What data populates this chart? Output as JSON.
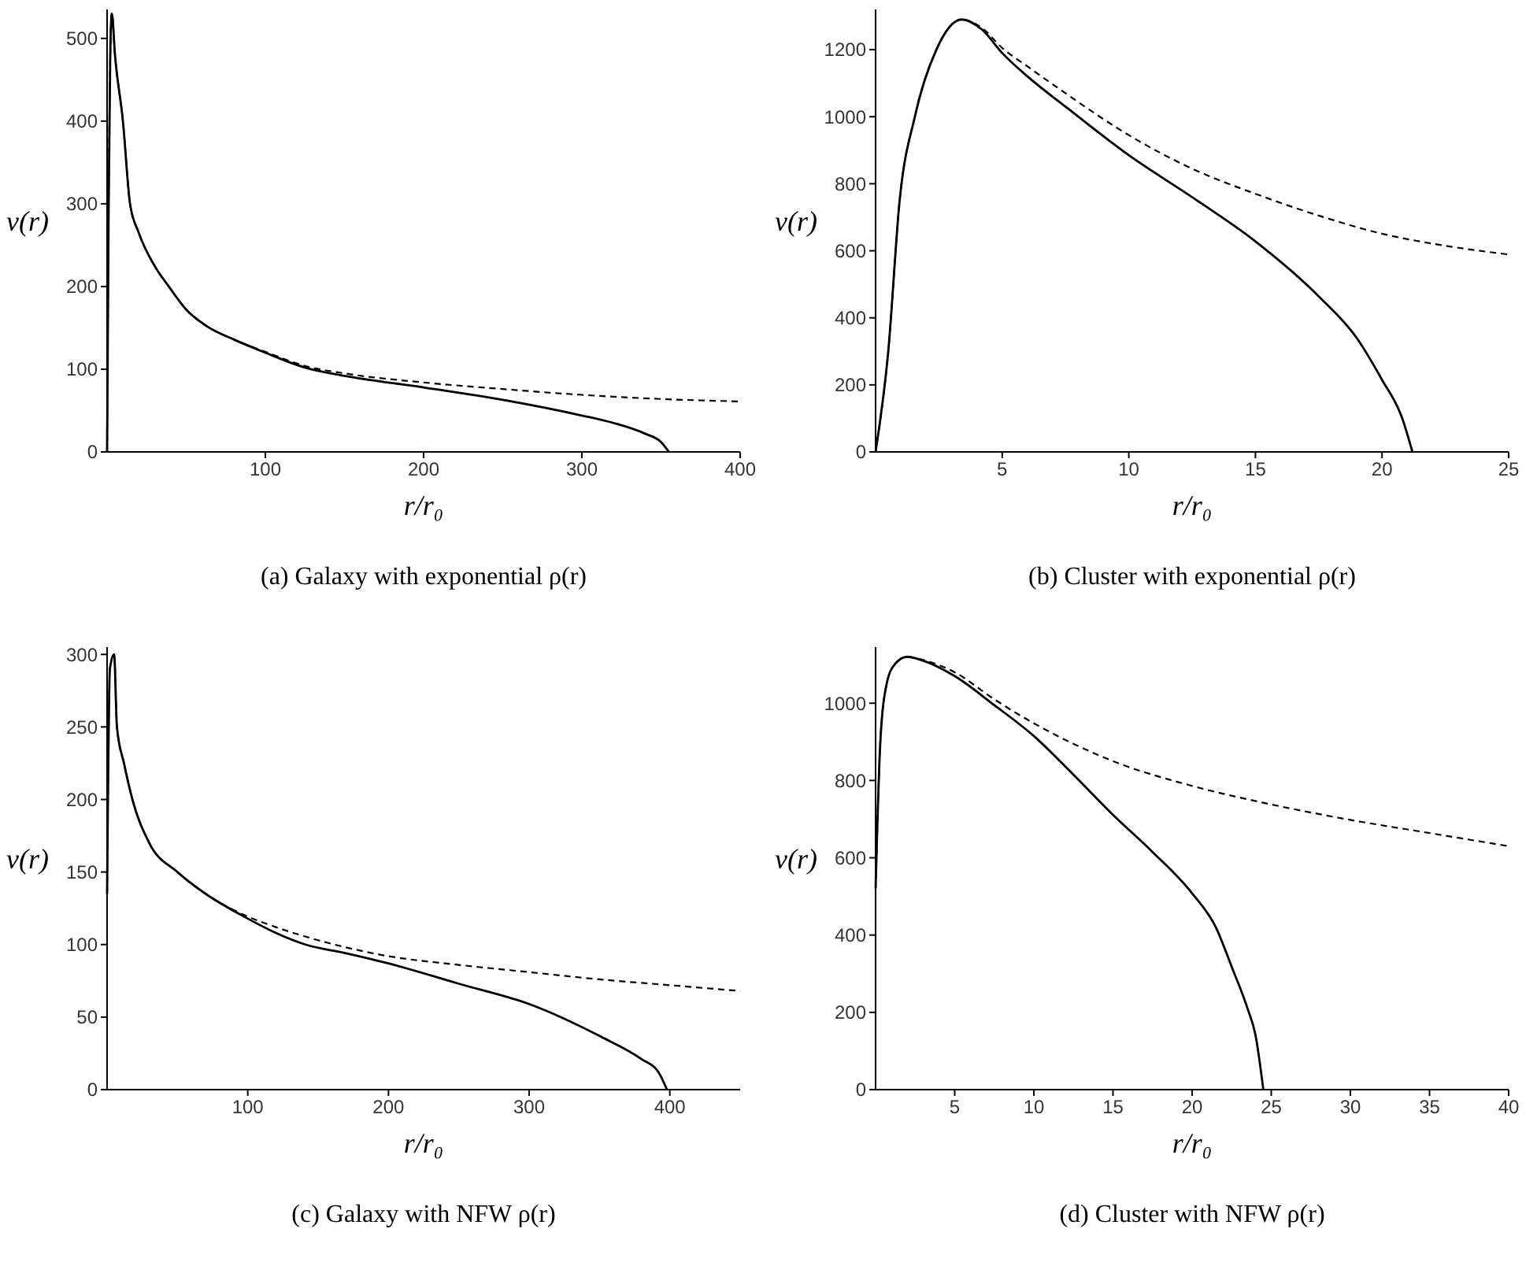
{
  "chart_data": [
    {
      "type": "line",
      "title": "(a) Galaxy with exponential ρ(r)",
      "xlabel": "r/r₀",
      "ylabel": "v(r)",
      "xlim": [
        0,
        400
      ],
      "ylim": [
        0,
        535
      ],
      "xticks": [
        100,
        200,
        300,
        400
      ],
      "yticks": [
        0,
        100,
        200,
        300,
        400,
        500
      ],
      "series": [
        {
          "color": "#000000",
          "line_style": "solid",
          "x": [
            0,
            1,
            2,
            3,
            5,
            10,
            14.5,
            20,
            30,
            39,
            50,
            63,
            80,
            100,
            125,
            150,
            200,
            250,
            300,
            320,
            340,
            350,
            355
          ],
          "values": [
            0,
            300,
            480,
            530,
            480,
            400,
            300,
            265,
            225,
            200,
            172,
            152,
            136,
            120,
            102,
            92,
            78,
            63,
            44,
            35,
            22,
            12,
            0
          ]
        },
        {
          "color": "#000000",
          "line_style": "dashed",
          "x": [
            0,
            1,
            2,
            3,
            5,
            10,
            14.5,
            20,
            30,
            39,
            50,
            63,
            80,
            100,
            125,
            150,
            200,
            250,
            300,
            350,
            400
          ],
          "values": [
            0,
            300,
            480,
            530,
            480,
            400,
            300,
            265,
            225,
            200,
            172,
            152,
            136,
            121,
            104,
            95,
            84,
            76,
            69,
            64,
            61
          ]
        }
      ]
    },
    {
      "type": "line",
      "title": "(b) Cluster with exponential ρ(r)",
      "xlabel": "r/r₀",
      "ylabel": "v(r)",
      "xlim": [
        0,
        25
      ],
      "ylim": [
        0,
        1320
      ],
      "xticks": [
        5,
        10,
        15,
        20,
        25
      ],
      "yticks": [
        0,
        200,
        400,
        600,
        800,
        1000,
        1200
      ],
      "series": [
        {
          "color": "#000000",
          "line_style": "solid",
          "x": [
            0,
            0.5,
            0.95,
            1.55,
            2.4,
            3.4,
            4.2,
            5,
            6,
            7.5,
            10,
            12.5,
            15,
            17.5,
            19,
            20,
            20.8,
            21.2
          ],
          "values": [
            0,
            300,
            750,
            1000,
            1200,
            1290,
            1260,
            1190,
            1120,
            1030,
            885,
            760,
            628,
            464,
            340,
            215,
            100,
            0
          ]
        },
        {
          "color": "#000000",
          "line_style": "dashed",
          "x": [
            0,
            0.5,
            0.95,
            1.55,
            2.4,
            3.4,
            4.2,
            5,
            6,
            7.5,
            10,
            12.5,
            15,
            17.5,
            20,
            22.5,
            25
          ],
          "values": [
            0,
            300,
            750,
            1000,
            1200,
            1290,
            1265,
            1205,
            1150,
            1070,
            945,
            845,
            770,
            705,
            651,
            615,
            589
          ]
        }
      ]
    },
    {
      "type": "line",
      "title": "(c) Galaxy with NFW ρ(r)",
      "xlabel": "r/r₀",
      "ylabel": "v(r)",
      "xlim": [
        0,
        450
      ],
      "ylim": [
        0,
        305
      ],
      "xticks": [
        100,
        200,
        300,
        400
      ],
      "yticks": [
        0,
        50,
        100,
        150,
        200,
        250,
        300
      ],
      "series": [
        {
          "color": "#000000",
          "line_style": "solid",
          "x": [
            0,
            2,
            5,
            7,
            12,
            18,
            30,
            50,
            70,
            96,
            120,
            141,
            170,
            200,
            250,
            300,
            350,
            380,
            392,
            398
          ],
          "values": [
            135,
            290,
            300,
            250,
            225,
            200,
            170,
            150,
            135,
            120,
            108,
            100,
            94,
            87,
            73,
            59,
            37,
            21,
            12,
            0
          ]
        },
        {
          "color": "#000000",
          "line_style": "dashed",
          "x": [
            0,
            2,
            5,
            7,
            12,
            18,
            30,
            50,
            70,
            96,
            120,
            150,
            200,
            250,
            300,
            350,
            400,
            450
          ],
          "values": [
            135,
            290,
            300,
            250,
            225,
            200,
            170,
            150,
            135,
            121,
            112,
            103,
            92,
            86,
            81,
            76,
            72,
            68
          ]
        }
      ]
    },
    {
      "type": "line",
      "title": "(d) Cluster with NFW ρ(r)",
      "xlabel": "r/r₀",
      "ylabel": "v(r)",
      "xlim": [
        0,
        40
      ],
      "ylim": [
        0,
        1145
      ],
      "xticks": [
        5,
        10,
        15,
        20,
        25,
        30,
        35,
        40
      ],
      "yticks": [
        0,
        200,
        400,
        600,
        800,
        1000
      ],
      "series": [
        {
          "color": "#000000",
          "line_style": "solid",
          "x": [
            0,
            0.3,
            0.7,
            1.2,
            2,
            3,
            5,
            7.5,
            10,
            12.5,
            15,
            17.5,
            20,
            21.5,
            22.5,
            23.5,
            24,
            24.5
          ],
          "values": [
            520,
            900,
            1050,
            1100,
            1120,
            1110,
            1070,
            995,
            915,
            815,
            711,
            615,
            508,
            420,
            318,
            210,
            142,
            0
          ]
        },
        {
          "color": "#000000",
          "line_style": "dashed",
          "x": [
            0,
            0.3,
            0.7,
            1.2,
            2,
            3,
            5,
            7.5,
            10,
            12.5,
            15,
            20,
            25,
            30,
            35,
            40
          ],
          "values": [
            520,
            900,
            1050,
            1100,
            1120,
            1112,
            1080,
            1010,
            948,
            895,
            850,
            786,
            738,
            698,
            664,
            630
          ]
        }
      ]
    }
  ]
}
